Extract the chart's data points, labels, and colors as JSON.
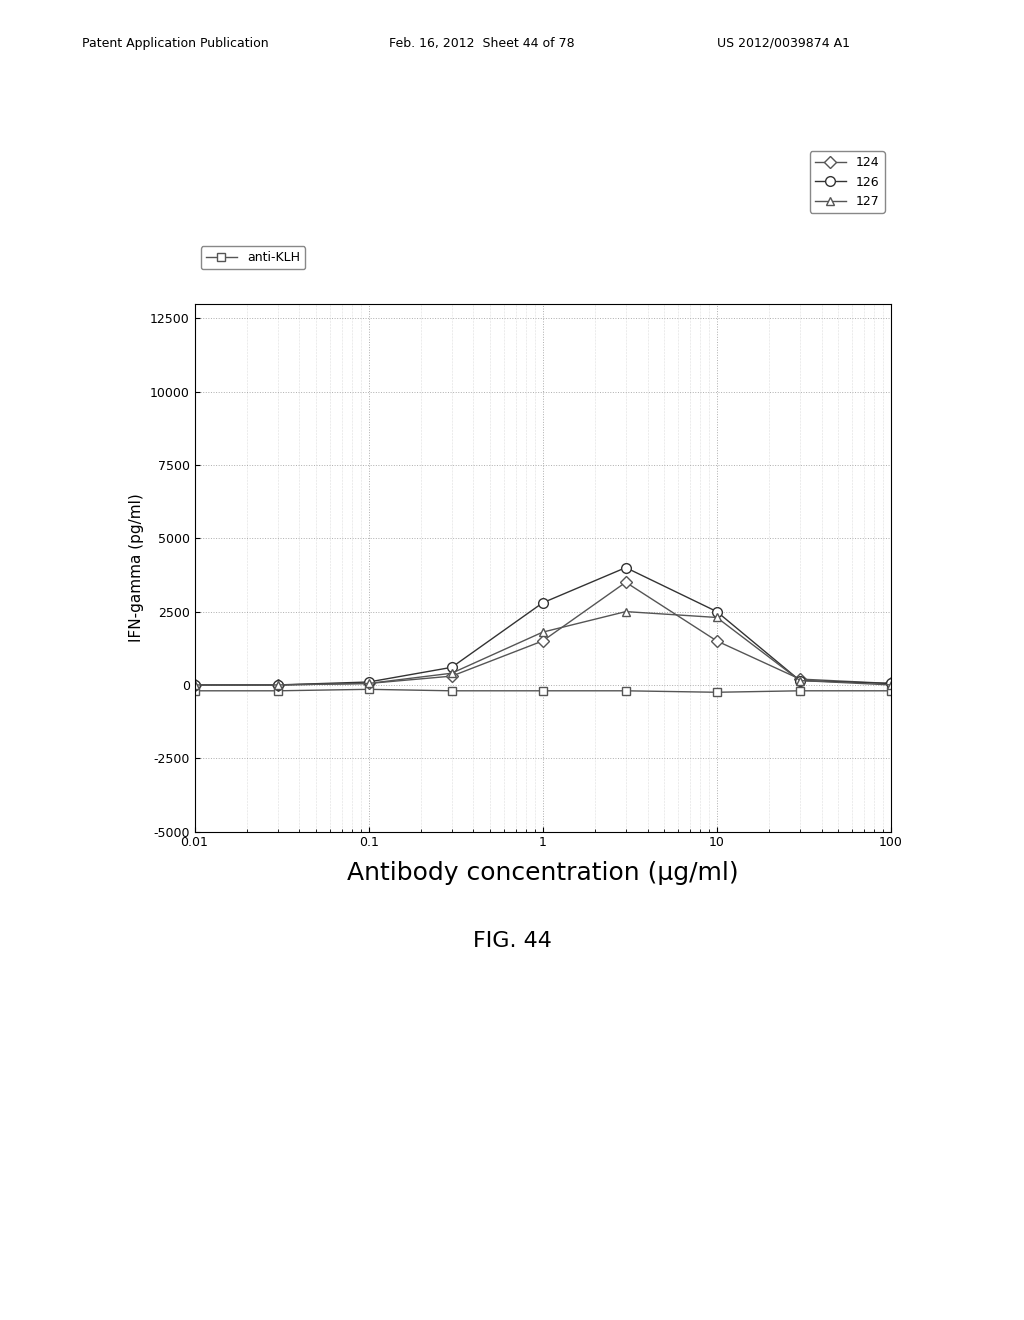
{
  "title": "FIG. 44",
  "xlabel": "Antibody concentration (μg/ml)",
  "ylabel": "IFN-gamma (pg/ml)",
  "header_left": "Patent Application Publication",
  "header_mid": "Feb. 16, 2012  Sheet 44 of 78",
  "header_right": "US 2012/0039874 A1",
  "x_values": [
    0.01,
    0.03,
    0.1,
    0.3,
    1.0,
    3.0,
    10.0,
    30.0,
    100.0
  ],
  "series": [
    {
      "label": "anti-KLH",
      "marker": "s",
      "color": "#555555",
      "markersize": 6,
      "markerfacecolor": "white",
      "y_values": [
        -200,
        -200,
        -150,
        -200,
        -200,
        -200,
        -250,
        -200,
        -200
      ]
    },
    {
      "label": "124",
      "marker": "D",
      "color": "#555555",
      "markersize": 6,
      "markerfacecolor": "white",
      "y_values": [
        0,
        0,
        50,
        300,
        1500,
        3500,
        1500,
        200,
        50
      ]
    },
    {
      "label": "126",
      "marker": "o",
      "color": "#333333",
      "markersize": 7,
      "markerfacecolor": "white",
      "y_values": [
        0,
        0,
        100,
        600,
        2800,
        4000,
        2500,
        150,
        50
      ]
    },
    {
      "label": "127",
      "marker": "^",
      "color": "#555555",
      "markersize": 6,
      "markerfacecolor": "white",
      "y_values": [
        0,
        0,
        50,
        400,
        1800,
        2500,
        2300,
        150,
        0
      ]
    }
  ],
  "ylim": [
    -5000,
    13000
  ],
  "yticks": [
    -5000,
    -2500,
    0,
    2500,
    5000,
    7500,
    10000,
    12500
  ],
  "xlim_log": [
    0.01,
    100
  ],
  "xticks": [
    0.01,
    0.1,
    1,
    10,
    100
  ],
  "background_color": "#ffffff",
  "grid_color": "#999999",
  "plot_bg_color": "#ffffff"
}
